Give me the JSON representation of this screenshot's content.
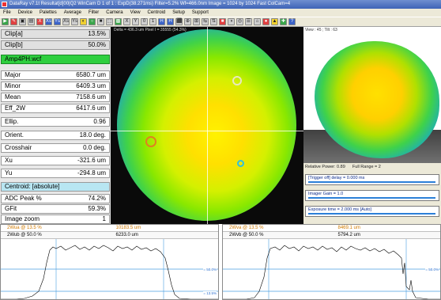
{
  "window": {
    "title": "DataRay v7.1t  Resultat[d]00|Q2  WinCam D 1 of 1 : ExpD(38.271ms) Filter=5.2%  Wf=466.0nm  Image = 1024 by 1024 Fast  ColCam=4"
  },
  "menu": [
    "File",
    "Device",
    "Palettes",
    "Average",
    "Filter",
    "Camera",
    "View",
    "Centroid",
    "Setup",
    "Support"
  ],
  "toolbar": [
    "▶",
    "✎",
    "▣",
    "▤",
    "X",
    "Xs",
    "Ys",
    "Xs",
    "Ys",
    "◐",
    "○",
    "■",
    "⬚",
    "▩",
    "X",
    "Y",
    "0",
    "1",
    "H",
    "H",
    "⬛",
    "⊕",
    "⊞",
    "⇆",
    "⇅",
    "■",
    "◑",
    "◎",
    "☰",
    "⌂",
    "●",
    "▲",
    "✚",
    "?"
  ],
  "left_panel": {
    "rows": [
      {
        "label": "Clip[a]",
        "value": "13.5%"
      },
      {
        "label": "Clip[b]",
        "value": "50.0%"
      },
      {
        "label": "Amp4PH.wcf",
        "value": ""
      },
      {
        "label": "Major",
        "value": "6580.7 um"
      },
      {
        "label": "Minor",
        "value": "6409.3 um"
      },
      {
        "label": "Mean",
        "value": "7158.6 um"
      },
      {
        "label": "Eff_2W",
        "value": "6417.6 um"
      },
      {
        "label": "Ellip.",
        "value": "0.96"
      },
      {
        "label": "Orient.",
        "value": "18.0 deg."
      },
      {
        "label": "Crosshair",
        "value": "0.0 deg."
      },
      {
        "label": "Xu",
        "value": "-321.6 um"
      },
      {
        "label": "Yu",
        "value": "-294.8 um"
      },
      {
        "label": "Centroid: [absolute]",
        "value": ""
      },
      {
        "label": "ADC Peak %",
        "value": "74.2%"
      },
      {
        "label": "GFit",
        "value": "59.3%"
      },
      {
        "label": "Image zoom",
        "value": "1"
      }
    ]
  },
  "main_view": {
    "info": "Delta = 436.3 um Pixel I = 35555 (54.3%)",
    "palette_colors": [
      "#1a2a9a",
      "#1a4fd8",
      "#1aa0d0",
      "#3fd24a",
      "#88e800",
      "#d4f000",
      "#ffe000",
      "#fff200"
    ]
  },
  "view3d": {
    "info": "View :  45 ; Tilt :  63"
  },
  "right_info": {
    "relative_power": "Relative Power: 0.89",
    "full_range": "Full Range = 2",
    "trigger": "[Trigger off] delay = 0.000 ms",
    "imager_gain": "Imager Gain = 1.0",
    "exposure": "Exposure time = 2.000 ms [Auto]"
  },
  "profiles": [
    {
      "clip_a_label": "2Wua @ 13.5 %",
      "clip_a_value": "10183.5 um",
      "clip_b_label": "2Wub @ 50.0 %",
      "clip_b_value": "6233.0 um",
      "tag_mid": "= 50.0%",
      "tag_low": "= 13.5%"
    },
    {
      "clip_a_label": "2Wva @ 13.5 %",
      "clip_a_value": "8469.1 um",
      "clip_b_label": "2Wvb @ 50.0 %",
      "clip_b_value": "5794.2 um",
      "tag_mid": "= 50.0%",
      "tag_low": "= 13.5%"
    }
  ]
}
